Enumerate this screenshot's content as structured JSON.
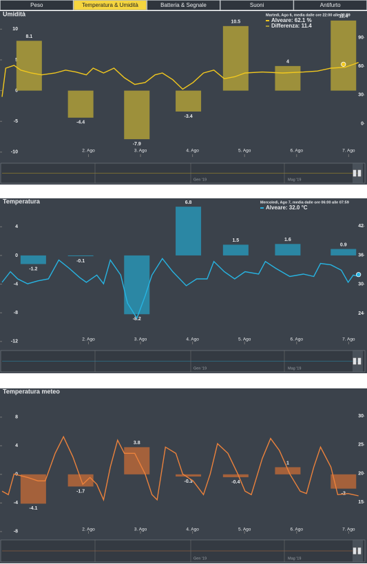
{
  "tabs": {
    "items": [
      "Peso",
      "Temperatura & Umidità",
      "Batteria & Segnale",
      "Suoni",
      "Antifurto"
    ],
    "active": 1
  },
  "chart_data": [
    {
      "type": "combo",
      "title": "Umidità",
      "xlim": [
        0.3,
        7.3
      ],
      "xticks": [
        {
          "value": 2,
          "label": "2. Ago"
        },
        {
          "value": 3,
          "label": "3. Ago"
        },
        {
          "value": 4,
          "label": "4. Ago"
        },
        {
          "value": 5,
          "label": "5. Ago"
        },
        {
          "value": 6,
          "label": "6. Ago"
        },
        {
          "value": 7,
          "label": "7. Ago"
        }
      ],
      "ylim": [
        -10.8,
        12.5
      ],
      "yticks": [
        -10,
        -5,
        0,
        5,
        10
      ],
      "y2lim": [
        -35,
        115
      ],
      "y2ticks": [
        0,
        30,
        60,
        90
      ],
      "series": [
        {
          "type": "bar",
          "color": "#a8993a",
          "x": [
            0.86,
            1.85,
            2.93,
            3.92,
            4.83,
            5.83,
            6.9
          ],
          "values": [
            8.1,
            -4.4,
            -7.9,
            -3.4,
            10.5,
            4,
            11.4
          ]
        },
        {
          "type": "line",
          "axis": "y2",
          "color": "#f2c81e",
          "x": [
            0.34,
            0.41,
            0.57,
            0.7,
            0.9,
            1.1,
            1.36,
            1.56,
            1.76,
            1.96,
            2.09,
            2.29,
            2.49,
            2.69,
            2.89,
            3.09,
            3.28,
            3.42,
            3.62,
            3.81,
            4.01,
            4.21,
            4.41,
            4.61,
            4.81,
            5.01,
            5.34,
            5.73,
            6.13,
            6.4,
            6.66,
            6.93,
            7.09,
            7.19
          ],
          "values": [
            28,
            58,
            61,
            56,
            53,
            51,
            53,
            56,
            54,
            51,
            58,
            53,
            58,
            48,
            41,
            43,
            51,
            53,
            46,
            36,
            43,
            53,
            56,
            47,
            49,
            53,
            54,
            53,
            54,
            55,
            58,
            59,
            62,
            64
          ]
        }
      ],
      "tooltip": {
        "title": "Martedì, Ago 6, media dalle ore 22:00 alle 23:59",
        "entries": [
          "Alveare: 62.1 %",
          "Differenza: 11.4"
        ],
        "x": 6.9,
        "value": 62.1
      },
      "navigator": {
        "labels": [
          "Gen '19",
          "Mag '19"
        ]
      }
    },
    {
      "type": "combo",
      "title": "Temperatura",
      "xlim": [
        0.3,
        7.3
      ],
      "xticks": [
        {
          "value": 2,
          "label": "2. Ago"
        },
        {
          "value": 3,
          "label": "3. Ago"
        },
        {
          "value": 4,
          "label": "4. Ago"
        },
        {
          "value": 5,
          "label": "5. Ago"
        },
        {
          "value": 6,
          "label": "6. Ago"
        },
        {
          "value": 7,
          "label": "7. Ago"
        }
      ],
      "ylim": [
        -12.4,
        7.2
      ],
      "yticks": [
        -12,
        -8,
        -4,
        0,
        4
      ],
      "y2lim": [
        17.6,
        46.6
      ],
      "y2ticks": [
        24,
        30,
        36,
        42
      ],
      "series": [
        {
          "type": "bar",
          "color": "#2a8fae",
          "x": [
            0.94,
            1.85,
            2.93,
            3.92,
            4.83,
            5.83,
            6.9
          ],
          "values": [
            -1.2,
            -0.1,
            -8.2,
            6.8,
            1.5,
            1.6,
            0.9
          ]
        },
        {
          "type": "line",
          "axis": "y2",
          "color": "#27b4e2",
          "x": [
            0.34,
            0.5,
            0.64,
            0.83,
            1.03,
            1.23,
            1.43,
            1.63,
            1.83,
            1.96,
            2.16,
            2.29,
            2.42,
            2.62,
            2.75,
            2.93,
            3.09,
            3.22,
            3.42,
            3.62,
            3.88,
            4.08,
            4.28,
            4.41,
            4.61,
            4.81,
            5.01,
            5.27,
            5.4,
            5.6,
            5.87,
            6.13,
            6.33,
            6.46,
            6.66,
            6.86,
            6.99,
            7.09,
            7.19
          ],
          "values": [
            30.4,
            32.6,
            31.1,
            30.1,
            30.7,
            31.1,
            35,
            33.3,
            31.4,
            30.4,
            31.9,
            30.1,
            35,
            31.9,
            26.1,
            23,
            27.6,
            31.9,
            35.3,
            32.6,
            29.7,
            31.1,
            31.1,
            34.7,
            32.6,
            31.1,
            32.6,
            32.1,
            34.7,
            33.3,
            31.6,
            32.1,
            31.6,
            34.3,
            34,
            32.9,
            30.4,
            31.9,
            31.6
          ]
        }
      ],
      "tooltip": {
        "title": "Mercoledì, Ago 7, media dalle ore 06:00 alle 07:59",
        "entries": [
          "Alveare: 32.0 °C"
        ],
        "x": 7.19,
        "value": 32.0
      },
      "navigator": {
        "labels": [
          "Gen '19",
          "Mag '19"
        ]
      }
    },
    {
      "type": "combo",
      "title": "Temperatura meteo",
      "xlim": [
        0.3,
        7.3
      ],
      "xticks": [
        {
          "value": 2,
          "label": "2. Ago"
        },
        {
          "value": 3,
          "label": "3. Ago"
        },
        {
          "value": 4,
          "label": "4. Ago"
        },
        {
          "value": 5,
          "label": "5. Ago"
        },
        {
          "value": 6,
          "label": "6. Ago"
        },
        {
          "value": 7,
          "label": "7. Ago"
        }
      ],
      "ylim": [
        -8.3,
        10
      ],
      "yticks": [
        -8,
        -4,
        0,
        4,
        8
      ],
      "y2lim": [
        9.5,
        32.3
      ],
      "y2ticks": [
        15,
        20,
        25,
        30
      ],
      "series": [
        {
          "type": "bar",
          "color": "#b0653a",
          "x": [
            0.94,
            1.85,
            2.93,
            3.92,
            4.83,
            5.83,
            6.9
          ],
          "values": [
            -4.1,
            -1.7,
            3.8,
            -0.3,
            -0.4,
            1,
            -2
          ]
        },
        {
          "type": "line",
          "axis": "y2",
          "color": "#ec823c",
          "x": [
            0.34,
            0.46,
            0.57,
            0.83,
            1.03,
            1.17,
            1.36,
            1.52,
            1.7,
            1.89,
            2.03,
            2.16,
            2.29,
            2.42,
            2.56,
            2.69,
            2.89,
            3.09,
            3.22,
            3.32,
            3.48,
            3.68,
            3.81,
            4.01,
            4.21,
            4.34,
            4.48,
            4.68,
            4.87,
            5.01,
            5.13,
            5.34,
            5.5,
            5.67,
            5.87,
            6.07,
            6.19,
            6.33,
            6.46,
            6.66,
            6.79,
            6.99,
            7.19
          ],
          "values": [
            16.9,
            16.3,
            19.9,
            19.3,
            18.7,
            18.7,
            23.5,
            26.4,
            22.9,
            18.1,
            19.3,
            18.1,
            15.4,
            21.1,
            25.8,
            23.5,
            23.5,
            19.9,
            16.3,
            15.4,
            24.6,
            23.5,
            19.9,
            18.7,
            16.3,
            19.9,
            25.2,
            23.5,
            19.9,
            16.9,
            16.3,
            22.6,
            26.1,
            24,
            19.9,
            16.9,
            16.5,
            21.1,
            24.6,
            21.1,
            16.3,
            16.5,
            16.1
          ]
        }
      ],
      "navigator": {
        "labels": [
          "Gen '19",
          "Mag '19"
        ]
      }
    }
  ]
}
